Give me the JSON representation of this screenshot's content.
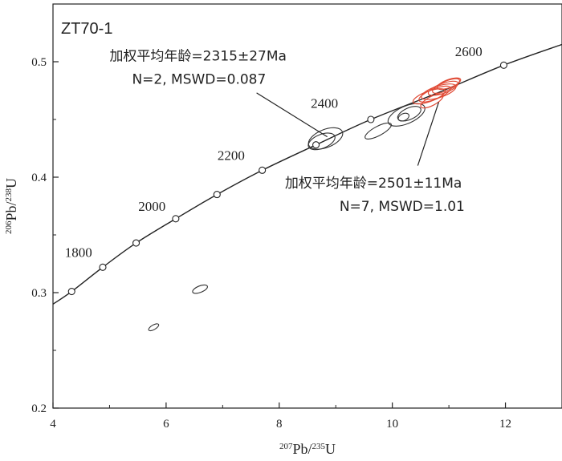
{
  "chart_data": {
    "type": "scatter",
    "sample": "ZT70-1",
    "xlabel": {
      "sup1": "207",
      "main1": "Pb/",
      "sup2": "235",
      "main2": "U"
    },
    "ylabel": {
      "sup1": "206",
      "main1": "Pb/",
      "sup2": "238",
      "main2": "U"
    },
    "xlim": [
      4,
      13
    ],
    "ylim": [
      0.2,
      0.55
    ],
    "x_ticks": [
      4,
      6,
      8,
      10,
      12
    ],
    "x_tick_labels": [
      "4",
      "6",
      "8",
      "10",
      "12"
    ],
    "y_ticks": [
      0.2,
      0.3,
      0.4,
      0.5
    ],
    "y_tick_labels": [
      "0.2",
      "0.3",
      "0.4",
      "0.5"
    ],
    "concordia": {
      "curve": [
        [
          4.0,
          0.29
        ],
        [
          4.33,
          0.301
        ],
        [
          4.88,
          0.322
        ],
        [
          5.47,
          0.343
        ],
        [
          6.17,
          0.364
        ],
        [
          6.9,
          0.385
        ],
        [
          7.7,
          0.406
        ],
        [
          8.65,
          0.428
        ],
        [
          9.62,
          0.45
        ],
        [
          10.8,
          0.473
        ],
        [
          11.97,
          0.497
        ],
        [
          13.0,
          0.515
        ]
      ],
      "markers": [
        [
          4.33,
          0.301
        ],
        [
          4.88,
          0.322
        ],
        [
          5.47,
          0.343
        ],
        [
          6.17,
          0.364
        ],
        [
          6.9,
          0.385
        ],
        [
          7.7,
          0.406
        ],
        [
          8.65,
          0.428
        ],
        [
          9.62,
          0.45
        ],
        [
          11.97,
          0.497
        ]
      ],
      "age_labels": [
        {
          "text": "1800",
          "x": 4.45,
          "y": 0.331
        },
        {
          "text": "2000",
          "x": 5.75,
          "y": 0.371
        },
        {
          "text": "2200",
          "x": 7.15,
          "y": 0.415
        },
        {
          "text": "2400",
          "x": 8.8,
          "y": 0.46
        },
        {
          "text": "2600",
          "x": 11.35,
          "y": 0.505
        }
      ]
    },
    "ellipses": [
      {
        "group": "inherited",
        "x": 8.75,
        "y": 0.431,
        "rx": 0.25,
        "ry": 0.006,
        "angle": -22,
        "color": "#333333"
      },
      {
        "group": "inherited",
        "x": 8.82,
        "y": 0.4335,
        "rx": 0.32,
        "ry": 0.0078,
        "angle": -22,
        "color": "#333333"
      },
      {
        "group": "discordant",
        "x": 9.75,
        "y": 0.44,
        "rx": 0.26,
        "ry": 0.004,
        "angle": -28,
        "color": "#333333"
      },
      {
        "group": "discordant",
        "x": 10.25,
        "y": 0.454,
        "rx": 0.35,
        "ry": 0.0075,
        "angle": -24,
        "color": "#333333"
      },
      {
        "group": "discordant",
        "x": 10.3,
        "y": 0.455,
        "rx": 0.22,
        "ry": 0.005,
        "angle": -24,
        "color": "#333333"
      },
      {
        "group": "discordant",
        "x": 10.2,
        "y": 0.452,
        "rx": 0.1,
        "ry": 0.003,
        "angle": -24,
        "color": "#333333"
      },
      {
        "group": "discordant",
        "x": 6.6,
        "y": 0.303,
        "rx": 0.14,
        "ry": 0.0028,
        "angle": -22,
        "color": "#333333"
      },
      {
        "group": "discordant",
        "x": 5.78,
        "y": 0.27,
        "rx": 0.1,
        "ry": 0.002,
        "angle": -30,
        "color": "#333333"
      },
      {
        "group": "main",
        "x": 10.65,
        "y": 0.47,
        "rx": 0.3,
        "ry": 0.0045,
        "angle": -20,
        "color": "#e04a35"
      },
      {
        "group": "main",
        "x": 10.75,
        "y": 0.472,
        "rx": 0.3,
        "ry": 0.0045,
        "angle": -22,
        "color": "#e04a35"
      },
      {
        "group": "main",
        "x": 10.82,
        "y": 0.474,
        "rx": 0.32,
        "ry": 0.005,
        "angle": -18,
        "color": "#e04a35"
      },
      {
        "group": "main",
        "x": 10.9,
        "y": 0.477,
        "rx": 0.28,
        "ry": 0.0042,
        "angle": -20,
        "color": "#e04a35"
      },
      {
        "group": "main",
        "x": 10.95,
        "y": 0.479,
        "rx": 0.26,
        "ry": 0.004,
        "angle": -24,
        "color": "#e04a35"
      },
      {
        "group": "main",
        "x": 10.7,
        "y": 0.466,
        "rx": 0.22,
        "ry": 0.0038,
        "angle": -28,
        "color": "#e04a35"
      },
      {
        "group": "main",
        "x": 11.0,
        "y": 0.481,
        "rx": 0.22,
        "ry": 0.0035,
        "angle": -20,
        "color": "#e04a35"
      }
    ],
    "annotations": [
      {
        "line1": "加权平均年龄=2315±27Ma",
        "line2": "N=2, MSWD=0.087",
        "text_x": 5.0,
        "text_y": 0.501,
        "pointer_from": [
          7.6,
          0.473
        ],
        "pointer_to": [
          8.85,
          0.435
        ]
      },
      {
        "line1": "加权平均年龄=2501±11Ma",
        "line2": "N=7, MSWD=1.01",
        "text_x": 8.1,
        "text_y": 0.391,
        "pointer_from": [
          10.45,
          0.41
        ],
        "pointer_to": [
          10.82,
          0.465
        ]
      }
    ],
    "colors": {
      "curve": "#222222",
      "main_group": "#e04a35",
      "other_ellipses": "#333333"
    }
  }
}
